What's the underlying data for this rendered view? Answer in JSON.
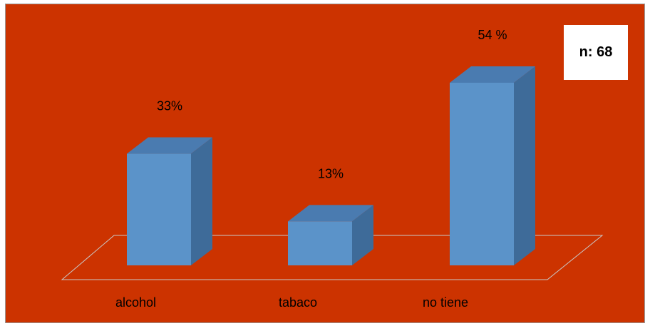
{
  "chart_data": {
    "type": "bar",
    "categories": [
      "alcohol",
      "tabaco",
      "no tiene"
    ],
    "values": [
      33,
      13,
      54
    ],
    "value_labels": [
      "33%",
      "13%",
      "54 %"
    ],
    "ylim": [
      0,
      54
    ],
    "grid": false,
    "legend": "none",
    "three_d": true,
    "colors": {
      "background": "#cc3300",
      "bar_front": "#5b93c9",
      "bar_top": "#4a7bb0",
      "bar_side": "#3e6b99",
      "floor_line": "#c9c9c9"
    }
  },
  "annotation": {
    "label": "n: 68"
  }
}
